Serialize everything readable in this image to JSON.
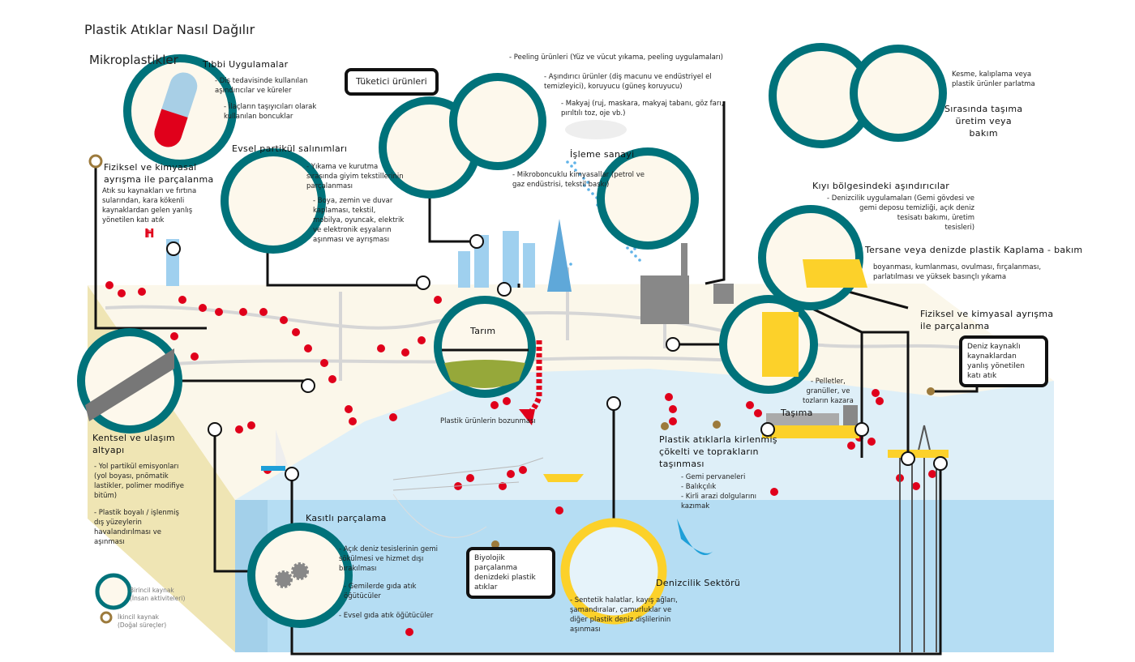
{
  "title": "Plastik Atıklar Nasıl Dağılır",
  "subtitle": "Mikroplastikler",
  "colors": {
    "primary_ring": "#00727a",
    "secondary_ring": "#9c7a3c",
    "marine_ring": "#fcd12a",
    "plastic": "#e0001b",
    "sea": "#b5ddf3",
    "land": "#fbf7ea"
  },
  "sections": {
    "medical": {
      "heading": "Tıbbi Uygulamalar",
      "items": [
        "- Diş tedavisinde kullanılan\naşındırıcılar ve küreler",
        "- İlaçların taşıyıcıları olarak\nkullanılan boncuklar"
      ]
    },
    "household": {
      "heading": "Evsel partikül salınımları",
      "items": [
        "- Yıkama ve kurutma\nsırasında giyim tekstillerinin\nparçalanması",
        "- Boya, zemin ve duvar\nkaplaması, tekstil,\nmobilya, oyuncak, elektrik\nve elektronik eşyaların\naşınması ve ayrışması"
      ]
    },
    "consumer": {
      "heading": "Tüketici ürünleri",
      "items": [
        "- Peeling ürünleri (Yüz ve vücut yıkama, peeling uygulamaları)",
        "- Aşındırıcı ürünler (diş macunu ve endüstriyel el\ntemizleyici), koruyucu (güneş koruyucu)",
        "- Makyaj (ruj, maskara, makyaj tabanı, göz farı,\npırıltılı toz, oje vb.)"
      ]
    },
    "industry": {
      "heading": "İşleme sanayi",
      "items": [
        "- Mikroboncuklu kimyasallar (petrol ve\ngaz endüstrisi, tekstil baskı)"
      ]
    },
    "cutting": {
      "description": "Kesme, kalıplama veya\nplastik ürünler parlatma",
      "heading": "Sırasında taşıma\nüretim veya\nbakım"
    },
    "coastal": {
      "heading": "Kıyı bölgesindeki aşındırıcılar",
      "items": [
        "- Denizcilik uygulamaları (Gemi gövdesi ve\ngemi deposu temizliği, açık deniz\ntesisatı bakımı, üretim\ntesisleri)"
      ]
    },
    "shipyard": {
      "heading": "Tersane veya denizde plastik Kaplama - bakım",
      "items": [
        "boyanması, kumlanması, ovulması, fırçalanması,\nparlatılması ve yüksek basınçlı yıkama"
      ]
    },
    "weathering_land": {
      "heading": "Fiziksel ve kimyasal\nayrışma ile parçalanma",
      "items": [
        "Atık su kaynakları ve fırtına\nsularından, kara kökenli\nkaynaklardan gelen yanlış\nyönetilen katı atık"
      ]
    },
    "weathering_sea": {
      "heading": "Fiziksel ve kimyasal ayrışma\nile parçalanma",
      "box": "Deniz kaynaklı\nkaynaklardan\nyanlış yönetilen\nkatı atık"
    },
    "urban": {
      "heading": "Kentsel ve ulaşım\naltyapı",
      "items": [
        "- Yol partikül emisyonları\n(yol boyası, pnömatik\nlastikler, polimer modifiye\nbitüm)",
        "- Plastik boyalı / işlenmiş\ndış yüzeylerin\nhavalandırılması ve\naşınması"
      ]
    },
    "agriculture": {
      "heading": "Tarım"
    },
    "degradation": {
      "label": "Plastik ürünlerin bozunması"
    },
    "transport": {
      "heading": "Taşıma",
      "items": [
        "- Pelletler,\ngranüller, ve\ntozların kazara"
      ]
    },
    "sediment": {
      "heading": "Plastik atıklarla kirlenmiş\nçökelti ve toprakların\ntaşınması",
      "items": [
        "- Gemi pervaneleri\n- Balıkçılık\n- Kirli arazi dolgularını\nkazımak"
      ]
    },
    "intentional": {
      "heading": "Kasıtlı parçalama",
      "items": [
        "- Açık deniz tesislerinin gemi\nsökülmesi ve hizmet dışı\nbırakılması",
        "- Gemilerde gıda atık\nöğütücüler",
        "- Evsel gıda atık öğütücüler"
      ]
    },
    "biological": {
      "box": "Biyolojik parçalanma\ndenizdeki plastik atıklar"
    },
    "maritime": {
      "heading": "Denizcilik Sektörü",
      "items": [
        "- Sentetik halatlar, kayış ağları,\nşamandıralar, çamurluklar ve\ndiğer plastik deniz dişlilerinin\naşınması"
      ]
    }
  },
  "legend": {
    "primary": "Birincil kaynak\n(İnsan aktiviteleri)",
    "secondary": "İkincil kaynak\n(Doğal süreçler)"
  }
}
